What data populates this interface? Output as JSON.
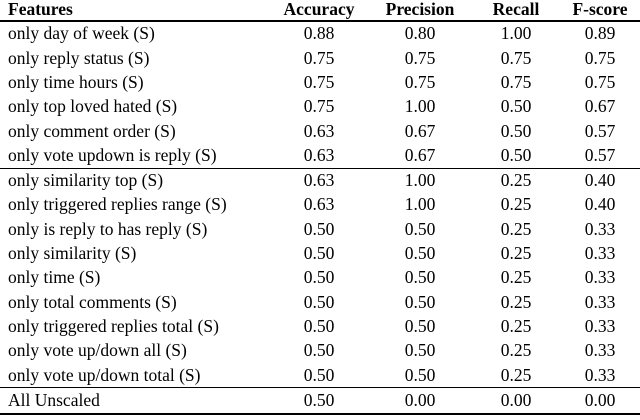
{
  "chart_data": {
    "type": "table",
    "columns": [
      "Features",
      "Accuracy",
      "Precision",
      "Recall",
      "F-score"
    ],
    "groups": [
      {
        "name": "group-1",
        "rows": [
          {
            "feature": "only day of week (S)",
            "values": [
              "0.88",
              "0.80",
              "1.00",
              "0.89"
            ]
          },
          {
            "feature": "only reply status (S)",
            "values": [
              "0.75",
              "0.75",
              "0.75",
              "0.75"
            ]
          },
          {
            "feature": "only time hours (S)",
            "values": [
              "0.75",
              "0.75",
              "0.75",
              "0.75"
            ]
          },
          {
            "feature": "only top loved hated (S)",
            "values": [
              "0.75",
              "1.00",
              "0.50",
              "0.67"
            ]
          },
          {
            "feature": "only comment order (S)",
            "values": [
              "0.63",
              "0.67",
              "0.50",
              "0.57"
            ]
          },
          {
            "feature": "only vote updown is reply (S)",
            "values": [
              "0.63",
              "0.67",
              "0.50",
              "0.57"
            ]
          }
        ]
      },
      {
        "name": "group-2",
        "rows": [
          {
            "feature": "only similarity top (S)",
            "values": [
              "0.63",
              "1.00",
              "0.25",
              "0.40"
            ]
          },
          {
            "feature": "only triggered replies range (S)",
            "values": [
              "0.63",
              "1.00",
              "0.25",
              "0.40"
            ]
          },
          {
            "feature": "only is reply to has reply (S)",
            "values": [
              "0.50",
              "0.50",
              "0.25",
              "0.33"
            ]
          },
          {
            "feature": "only similarity (S)",
            "values": [
              "0.50",
              "0.50",
              "0.25",
              "0.33"
            ]
          },
          {
            "feature": "only time (S)",
            "values": [
              "0.50",
              "0.50",
              "0.25",
              "0.33"
            ]
          },
          {
            "feature": "only total comments (S)",
            "values": [
              "0.50",
              "0.50",
              "0.25",
              "0.33"
            ]
          },
          {
            "feature": "only triggered replies total (S)",
            "values": [
              "0.50",
              "0.50",
              "0.25",
              "0.33"
            ]
          },
          {
            "feature": "only vote up/down all (S)",
            "values": [
              "0.50",
              "0.50",
              "0.25",
              "0.33"
            ]
          },
          {
            "feature": "only vote up/down total (S)",
            "values": [
              "0.50",
              "0.50",
              "0.25",
              "0.33"
            ]
          }
        ]
      },
      {
        "name": "summary",
        "rows": [
          {
            "feature": "All Unscaled",
            "values": [
              "0.50",
              "0.00",
              "0.00",
              "0.00"
            ]
          }
        ]
      }
    ],
    "colors": {
      "text": "#000000",
      "background": "#ffffff",
      "rule": "#000000"
    }
  }
}
